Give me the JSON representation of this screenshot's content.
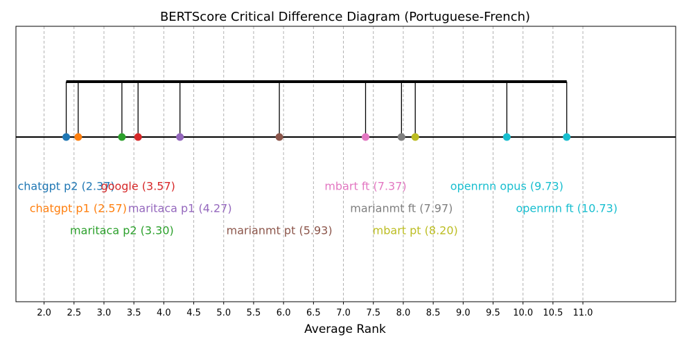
{
  "chart_data": {
    "type": "scatter",
    "title": "BERTScore Critical Difference Diagram (Portuguese-French)",
    "xlabel": "Average Rank",
    "xlim": [
      1.53,
      12.55
    ],
    "x_ticks": [
      "2.0",
      "2.5",
      "3.0",
      "3.5",
      "4.0",
      "4.5",
      "5.0",
      "5.5",
      "6.0",
      "6.5",
      "7.0",
      "7.5",
      "8.0",
      "8.5",
      "9.0",
      "9.5",
      "10.0",
      "10.5",
      "11.0"
    ],
    "x_tick_values": [
      2.0,
      2.5,
      3.0,
      3.5,
      4.0,
      4.5,
      5.0,
      5.5,
      6.0,
      6.5,
      7.0,
      7.5,
      8.0,
      8.5,
      9.0,
      9.5,
      10.0,
      10.5,
      11.0
    ],
    "grid": "vertical dashed",
    "cd_group": [
      2.37,
      10.73
    ],
    "points": [
      {
        "name": "chatgpt p2",
        "rank": 2.37,
        "label": "chatgpt p2 (2.37)",
        "color": "#1f77b4",
        "row": 0
      },
      {
        "name": "chatgpt p1",
        "rank": 2.57,
        "label": "chatgpt p1 (2.57)",
        "color": "#ff7f0e",
        "row": 1
      },
      {
        "name": "maritaca p2",
        "rank": 3.3,
        "label": "maritaca p2 (3.30)",
        "color": "#2ca02c",
        "row": 2
      },
      {
        "name": "google",
        "rank": 3.57,
        "label": "google (3.57)",
        "color": "#d62728",
        "row": 0
      },
      {
        "name": "maritaca p1",
        "rank": 4.27,
        "label": "maritaca p1 (4.27)",
        "color": "#9467bd",
        "row": 1
      },
      {
        "name": "marianmt pt",
        "rank": 5.93,
        "label": "marianmt pt (5.93)",
        "color": "#8c564b",
        "row": 2
      },
      {
        "name": "mbart ft",
        "rank": 7.37,
        "label": "mbart ft (7.37)",
        "color": "#e377c2",
        "row": 0
      },
      {
        "name": "marianmt ft",
        "rank": 7.97,
        "label": "marianmt ft (7.97)",
        "color": "#7f7f7f",
        "row": 1
      },
      {
        "name": "mbart pt",
        "rank": 8.2,
        "label": "mbart pt (8.20)",
        "color": "#bcbd22",
        "row": 2
      },
      {
        "name": "openrnn opus",
        "rank": 9.73,
        "label": "openrnn opus (9.73)",
        "color": "#17becf",
        "row": 0
      },
      {
        "name": "openrnn ft",
        "rank": 10.73,
        "label": "openrnn ft (10.73)",
        "color": "#17becf",
        "row": 1
      }
    ]
  }
}
